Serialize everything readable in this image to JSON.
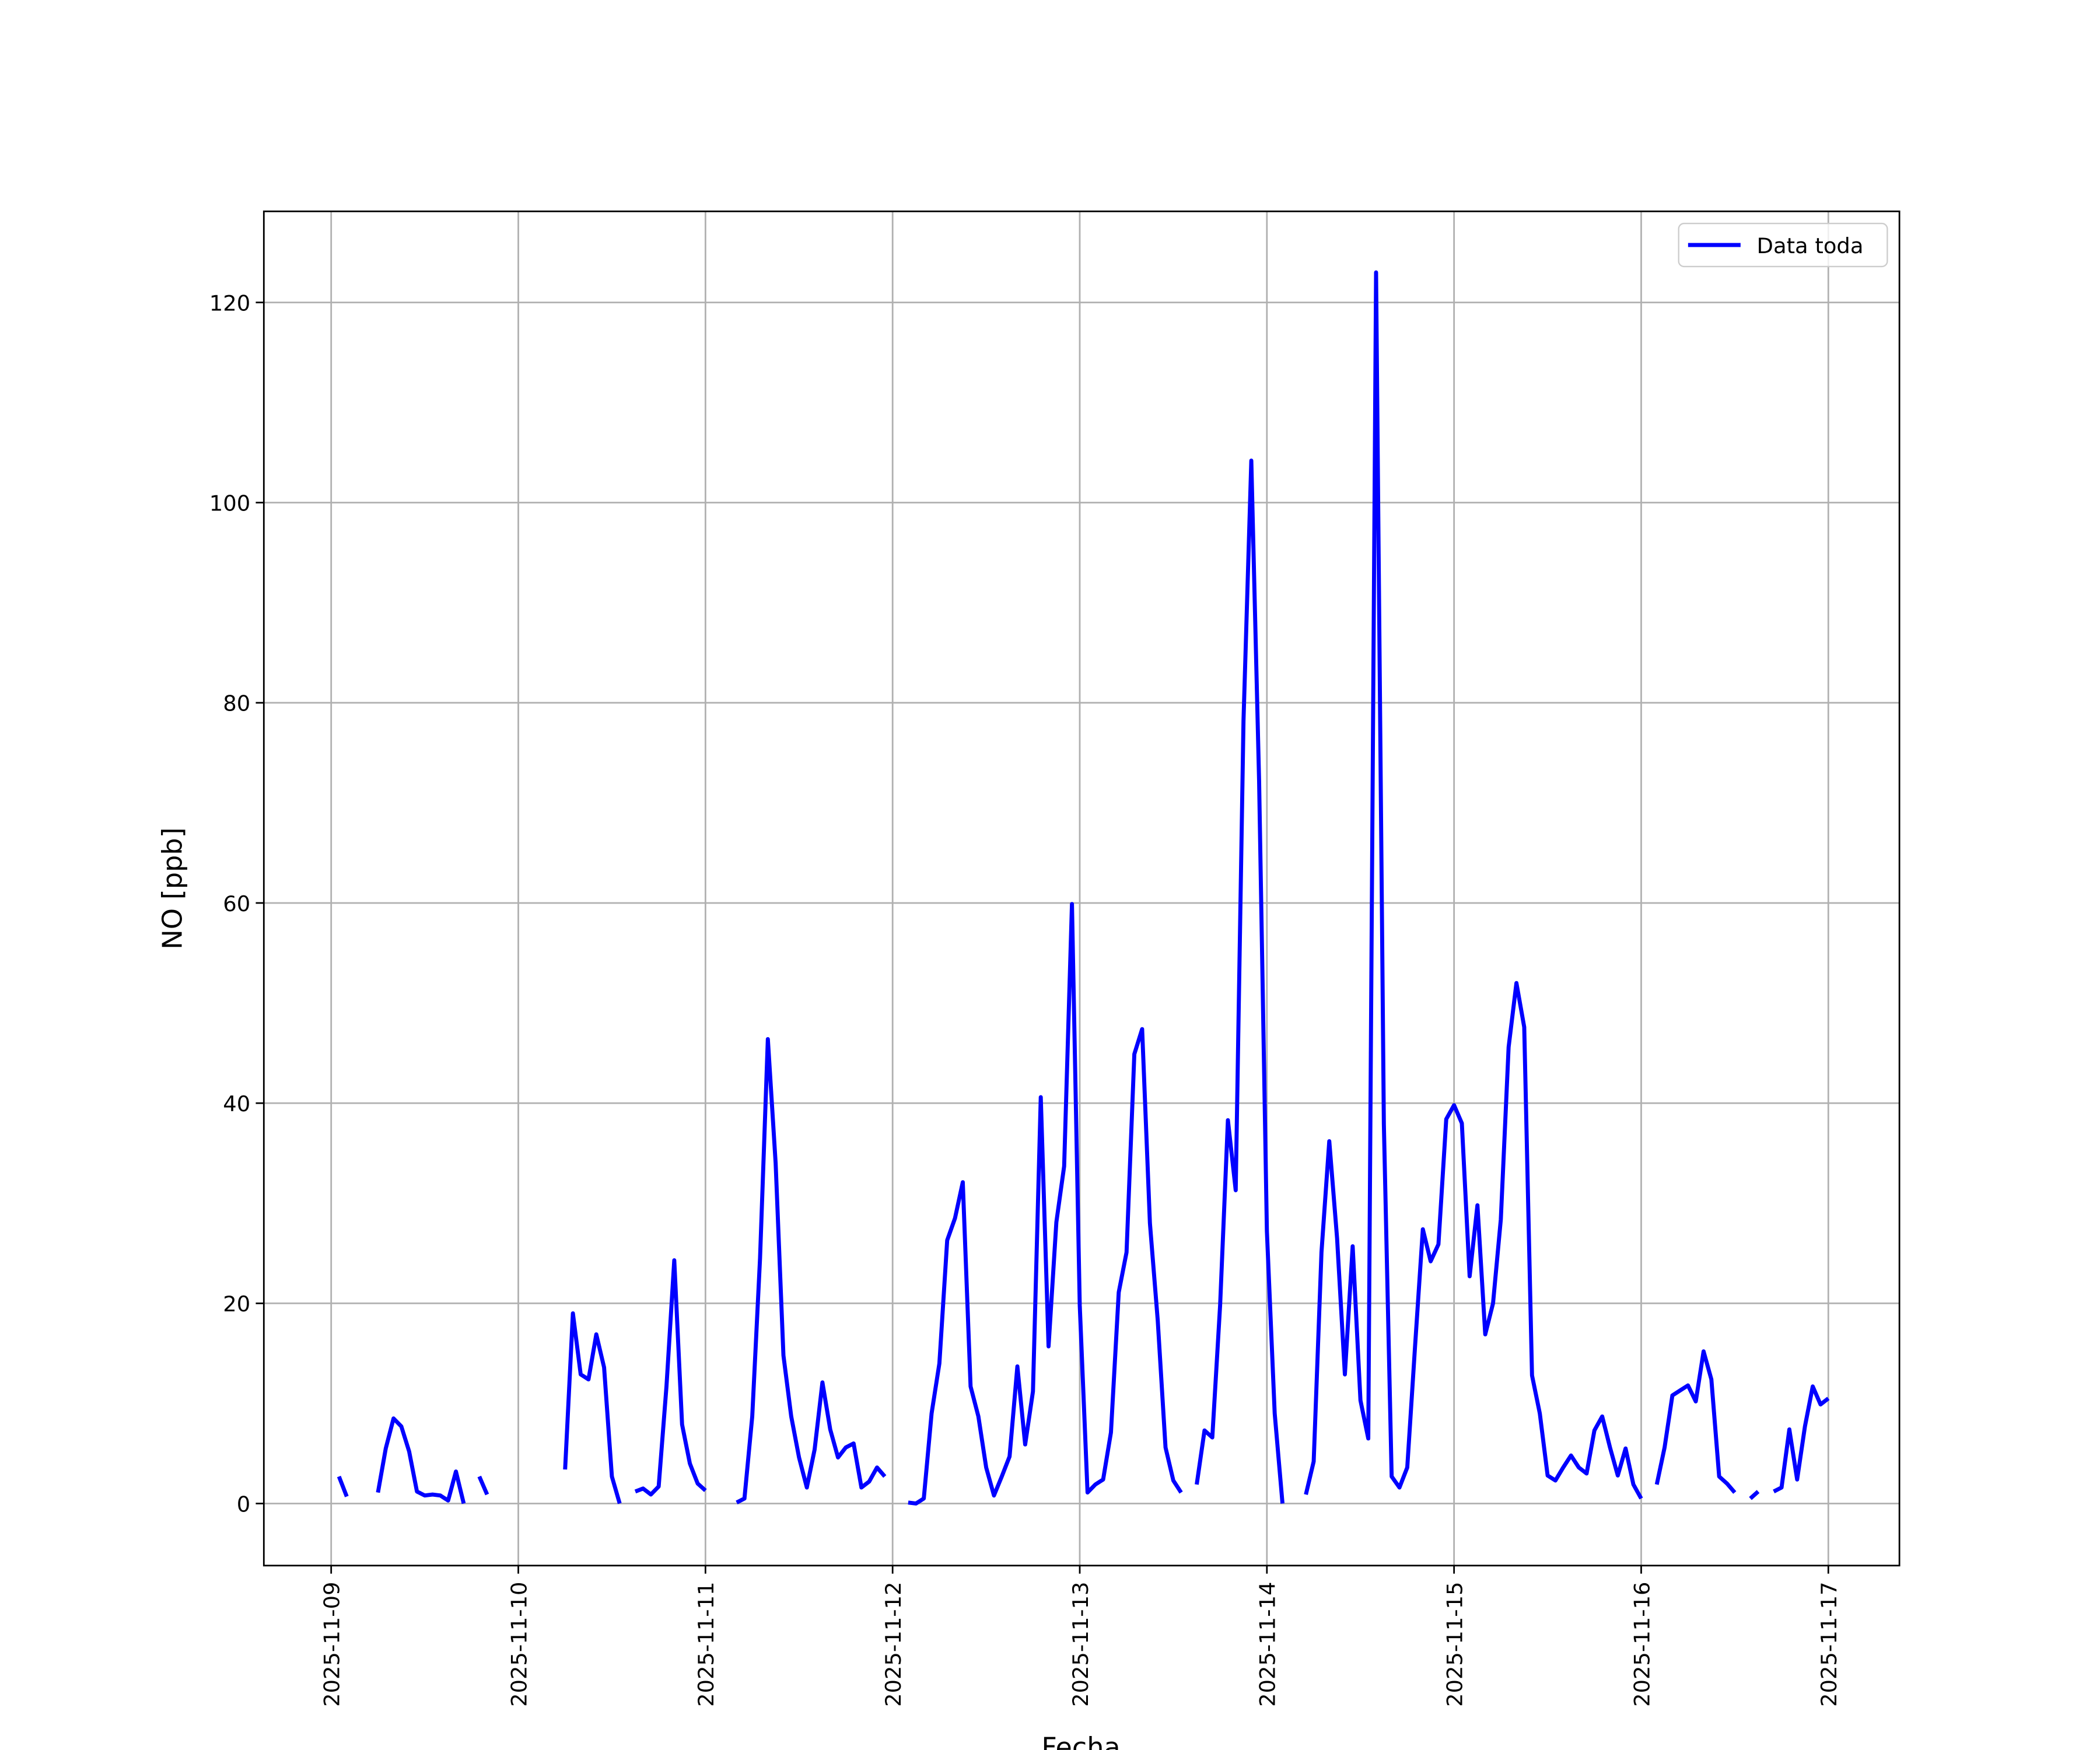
{
  "chart_data": {
    "type": "line",
    "xlabel": "Fecha",
    "ylabel": "NO [ppb]",
    "x": [
      "2025-11-09T01:00",
      "2025-11-09T02:00",
      "2025-11-09T03:00",
      "2025-11-09T04:00",
      "2025-11-09T05:00",
      "2025-11-09T06:00",
      "2025-11-09T07:00",
      "2025-11-09T08:00",
      "2025-11-09T09:00",
      "2025-11-09T10:00",
      "2025-11-09T11:00",
      "2025-11-09T12:00",
      "2025-11-09T13:00",
      "2025-11-09T14:00",
      "2025-11-09T15:00",
      "2025-11-09T16:00",
      "2025-11-09T17:00",
      "2025-11-09T18:00",
      "2025-11-09T19:00",
      "2025-11-09T20:00",
      "2025-11-09T21:00",
      "2025-11-09T22:00",
      "2025-11-09T23:00",
      "2025-11-10T00:00",
      "2025-11-10T01:00",
      "2025-11-10T02:00",
      "2025-11-10T03:00",
      "2025-11-10T04:00",
      "2025-11-10T05:00",
      "2025-11-10T06:00",
      "2025-11-10T07:00",
      "2025-11-10T08:00",
      "2025-11-10T09:00",
      "2025-11-10T10:00",
      "2025-11-10T11:00",
      "2025-11-10T12:00",
      "2025-11-10T13:00",
      "2025-11-10T14:00",
      "2025-11-10T15:00",
      "2025-11-10T16:00",
      "2025-11-10T17:00",
      "2025-11-10T18:00",
      "2025-11-10T19:00",
      "2025-11-10T20:00",
      "2025-11-10T21:00",
      "2025-11-10T22:00",
      "2025-11-10T23:00",
      "2025-11-11T00:00",
      "2025-11-11T01:00",
      "2025-11-11T02:00",
      "2025-11-11T03:00",
      "2025-11-11T04:00",
      "2025-11-11T05:00",
      "2025-11-11T06:00",
      "2025-11-11T07:00",
      "2025-11-11T08:00",
      "2025-11-11T09:00",
      "2025-11-11T10:00",
      "2025-11-11T11:00",
      "2025-11-11T12:00",
      "2025-11-11T13:00",
      "2025-11-11T14:00",
      "2025-11-11T15:00",
      "2025-11-11T16:00",
      "2025-11-11T17:00",
      "2025-11-11T18:00",
      "2025-11-11T19:00",
      "2025-11-11T20:00",
      "2025-11-11T21:00",
      "2025-11-11T22:00",
      "2025-11-11T23:00",
      "2025-11-12T00:00",
      "2025-11-12T01:00",
      "2025-11-12T02:00",
      "2025-11-12T03:00",
      "2025-11-12T04:00",
      "2025-11-12T05:00",
      "2025-11-12T06:00",
      "2025-11-12T07:00",
      "2025-11-12T08:00",
      "2025-11-12T09:00",
      "2025-11-12T10:00",
      "2025-11-12T11:00",
      "2025-11-12T12:00",
      "2025-11-12T13:00",
      "2025-11-12T14:00",
      "2025-11-12T15:00",
      "2025-11-12T16:00",
      "2025-11-12T17:00",
      "2025-11-12T18:00",
      "2025-11-12T19:00",
      "2025-11-12T20:00",
      "2025-11-12T21:00",
      "2025-11-12T22:00",
      "2025-11-12T23:00",
      "2025-11-13T00:00",
      "2025-11-13T01:00",
      "2025-11-13T02:00",
      "2025-11-13T03:00",
      "2025-11-13T04:00",
      "2025-11-13T05:00",
      "2025-11-13T06:00",
      "2025-11-13T07:00",
      "2025-11-13T08:00",
      "2025-11-13T09:00",
      "2025-11-13T10:00",
      "2025-11-13T11:00",
      "2025-11-13T12:00",
      "2025-11-13T13:00",
      "2025-11-13T14:00",
      "2025-11-13T15:00",
      "2025-11-13T16:00",
      "2025-11-13T17:00",
      "2025-11-13T18:00",
      "2025-11-13T19:00",
      "2025-11-13T20:00",
      "2025-11-13T21:00",
      "2025-11-13T22:00",
      "2025-11-13T23:00",
      "2025-11-14T00:00",
      "2025-11-14T01:00",
      "2025-11-14T02:00",
      "2025-11-14T03:00",
      "2025-11-14T04:00",
      "2025-11-14T05:00",
      "2025-11-14T06:00",
      "2025-11-14T07:00",
      "2025-11-14T08:00",
      "2025-11-14T09:00",
      "2025-11-14T10:00",
      "2025-11-14T11:00",
      "2025-11-14T12:00",
      "2025-11-14T13:00",
      "2025-11-14T14:00",
      "2025-11-14T15:00",
      "2025-11-14T16:00",
      "2025-11-14T17:00",
      "2025-11-14T18:00",
      "2025-11-14T19:00",
      "2025-11-14T20:00",
      "2025-11-14T21:00",
      "2025-11-14T22:00",
      "2025-11-14T23:00",
      "2025-11-15T00:00",
      "2025-11-15T01:00",
      "2025-11-15T02:00",
      "2025-11-15T03:00",
      "2025-11-15T04:00",
      "2025-11-15T05:00",
      "2025-11-15T06:00",
      "2025-11-15T07:00",
      "2025-11-15T08:00",
      "2025-11-15T09:00",
      "2025-11-15T10:00",
      "2025-11-15T11:00",
      "2025-11-15T12:00",
      "2025-11-15T13:00",
      "2025-11-15T14:00",
      "2025-11-15T15:00",
      "2025-11-15T16:00",
      "2025-11-15T17:00",
      "2025-11-15T18:00",
      "2025-11-15T19:00",
      "2025-11-15T20:00",
      "2025-11-15T21:00",
      "2025-11-15T22:00",
      "2025-11-15T23:00",
      "2025-11-16T00:00",
      "2025-11-16T01:00",
      "2025-11-16T02:00",
      "2025-11-16T03:00",
      "2025-11-16T04:00",
      "2025-11-16T05:00",
      "2025-11-16T06:00",
      "2025-11-16T07:00",
      "2025-11-16T08:00",
      "2025-11-16T09:00",
      "2025-11-16T10:00",
      "2025-11-16T11:00",
      "2025-11-16T12:00",
      "2025-11-16T13:00",
      "2025-11-16T14:00",
      "2025-11-16T15:00",
      "2025-11-16T16:00",
      "2025-11-16T17:00",
      "2025-11-16T18:00",
      "2025-11-16T19:00",
      "2025-11-16T20:00",
      "2025-11-16T21:00",
      "2025-11-16T22:00",
      "2025-11-16T23:00",
      "2025-11-17T00:00"
    ],
    "series": [
      {
        "name": "Data toda",
        "color": "#0000ff",
        "values": [
          2.7,
          0.7,
          null,
          null,
          null,
          1.1,
          5.5,
          8.5,
          7.7,
          5.2,
          1.2,
          0.8,
          0.9,
          0.8,
          0.3,
          3.2,
          0,
          null,
          2.7,
          0.9,
          null,
          null,
          null,
          null,
          null,
          null,
          null,
          null,
          null,
          3.4,
          19.0,
          12.9,
          12.4,
          16.9,
          13.6,
          2.7,
          0,
          null,
          1.2,
          1.5,
          0.9,
          1.7,
          11.7,
          24.3,
          7.9,
          4.0,
          2.0,
          1.3,
          null,
          null,
          null,
          0.1,
          0.5,
          8.7,
          24.5,
          46.4,
          34.0,
          14.8,
          8.7,
          4.6,
          1.6,
          5.4,
          12.1,
          7.4,
          4.6,
          5.6,
          6.0,
          1.6,
          2.2,
          3.6,
          2.7,
          null,
          null,
          0.1,
          0.0,
          0.5,
          9.0,
          14.0,
          26.3,
          28.5,
          32.1,
          11.7,
          8.7,
          3.6,
          0.8,
          2.7,
          4.7,
          13.7,
          5.9,
          11.2,
          40.6,
          15.7,
          28.1,
          33.7,
          59.9,
          19.8,
          1.1,
          1.9,
          2.4,
          7.1,
          21.1,
          25.1,
          44.9,
          47.4,
          28.0,
          18.3,
          5.6,
          2.3,
          1.1,
          null,
          1.9,
          7.3,
          6.6,
          19.8,
          38.3,
          31.3,
          78.2,
          104.2,
          72.2,
          27.2,
          9.0,
          0.0,
          null,
          null,
          0.9,
          4.2,
          25.1,
          36.2,
          26.5,
          12.9,
          25.7,
          10.3,
          6.5,
          123.0,
          37.9,
          2.7,
          1.6,
          3.6,
          15.7,
          27.4,
          24.2,
          25.9,
          38.4,
          39.8,
          38.0,
          22.7,
          29.8,
          16.9,
          20.0,
          28.4,
          45.6,
          52.0,
          47.6,
          12.8,
          9.0,
          2.8,
          2.3,
          3.6,
          4.8,
          3.6,
          3.0,
          7.3,
          8.7,
          5.6,
          2.8,
          5.5,
          1.9,
          0.5,
          null,
          1.9,
          5.6,
          10.8,
          11.3,
          11.8,
          10.2,
          15.2,
          12.4,
          2.7,
          2.0,
          1.1,
          null,
          0.5,
          1.2,
          null,
          1.2,
          1.6,
          7.4,
          2.4,
          7.7,
          11.7,
          9.9,
          10.5
        ]
      }
    ],
    "xlim": [
      "2025-11-08T15:22",
      "2025-11-17T09:07"
    ],
    "xticks": [
      "2025-11-09",
      "2025-11-10",
      "2025-11-11",
      "2025-11-12",
      "2025-11-13",
      "2025-11-14",
      "2025-11-15",
      "2025-11-16",
      "2025-11-17"
    ],
    "ylim": [
      -6.2,
      129.1
    ],
    "yticks": [
      0,
      20,
      40,
      60,
      80,
      100,
      120
    ],
    "grid": true,
    "legend": "upper right"
  }
}
